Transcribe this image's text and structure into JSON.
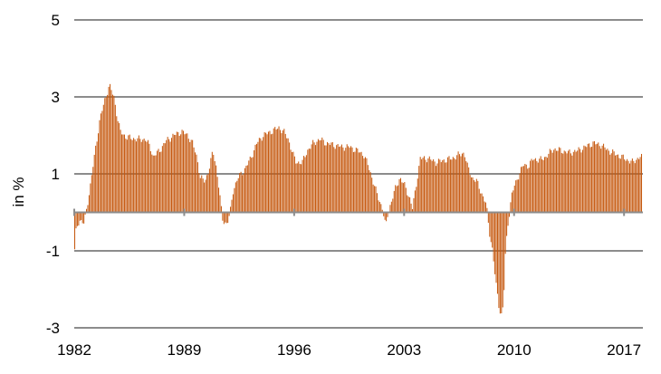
{
  "chart_data": {
    "type": "bar",
    "ylabel": "in %",
    "ylim": [
      -3,
      5
    ],
    "yticks": [
      5,
      3,
      1,
      -1,
      -3
    ],
    "xlim": [
      1982.0,
      2018.2
    ],
    "xtick_labels": [
      "1982",
      "1989",
      "1996",
      "2003",
      "2010",
      "2017"
    ],
    "xtick_values": [
      1982,
      1989,
      1996,
      2003,
      2010,
      2017
    ],
    "grid": "horizontal",
    "bar_color": "#c65a11",
    "series": [
      {
        "frequency": "monthly",
        "start": "1982-01",
        "anchors": [
          [
            1982.0,
            -1.0
          ],
          [
            1982.1,
            -0.4
          ],
          [
            1982.3,
            -0.2
          ],
          [
            1982.6,
            -0.3
          ],
          [
            1982.8,
            0.2
          ],
          [
            1983.0,
            0.7
          ],
          [
            1983.3,
            1.6
          ],
          [
            1983.6,
            2.4
          ],
          [
            1983.9,
            2.9
          ],
          [
            1984.2,
            3.3
          ],
          [
            1984.5,
            3.0
          ],
          [
            1984.7,
            2.5
          ],
          [
            1984.9,
            2.1
          ],
          [
            1985.3,
            1.95
          ],
          [
            1986.0,
            1.9
          ],
          [
            1986.5,
            1.9
          ],
          [
            1986.8,
            1.7
          ],
          [
            1987.0,
            1.45
          ],
          [
            1987.4,
            1.6
          ],
          [
            1987.8,
            1.85
          ],
          [
            1988.3,
            2.0
          ],
          [
            1988.8,
            2.1
          ],
          [
            1989.2,
            2.0
          ],
          [
            1989.5,
            1.8
          ],
          [
            1989.8,
            1.4
          ],
          [
            1990.0,
            0.9
          ],
          [
            1990.3,
            0.8
          ],
          [
            1990.6,
            1.2
          ],
          [
            1990.8,
            1.6
          ],
          [
            1991.0,
            1.2
          ],
          [
            1991.2,
            0.6
          ],
          [
            1991.4,
            -0.2
          ],
          [
            1991.7,
            -0.3
          ],
          [
            1991.9,
            0.0
          ],
          [
            1992.1,
            0.6
          ],
          [
            1992.4,
            0.9
          ],
          [
            1992.8,
            1.1
          ],
          [
            1993.2,
            1.4
          ],
          [
            1993.6,
            1.8
          ],
          [
            1994.0,
            2.0
          ],
          [
            1994.5,
            2.1
          ],
          [
            1995.0,
            2.2
          ],
          [
            1995.3,
            2.1
          ],
          [
            1995.6,
            1.9
          ],
          [
            1995.9,
            1.5
          ],
          [
            1996.1,
            1.3
          ],
          [
            1996.5,
            1.3
          ],
          [
            1996.8,
            1.6
          ],
          [
            1997.2,
            1.8
          ],
          [
            1997.6,
            1.9
          ],
          [
            1998.0,
            1.8
          ],
          [
            1998.5,
            1.75
          ],
          [
            1999.0,
            1.7
          ],
          [
            1999.5,
            1.7
          ],
          [
            2000.0,
            1.6
          ],
          [
            2000.4,
            1.5
          ],
          [
            2000.7,
            1.2
          ],
          [
            2001.0,
            0.8
          ],
          [
            2001.3,
            0.4
          ],
          [
            2001.6,
            0.1
          ],
          [
            2001.8,
            -0.4
          ],
          [
            2001.9,
            -0.1
          ],
          [
            2002.1,
            0.2
          ],
          [
            2002.4,
            0.6
          ],
          [
            2002.7,
            0.9
          ],
          [
            2003.0,
            0.7
          ],
          [
            2003.3,
            0.4
          ],
          [
            2003.5,
            0.1
          ],
          [
            2003.7,
            0.6
          ],
          [
            2004.0,
            1.4
          ],
          [
            2004.5,
            1.4
          ],
          [
            2005.0,
            1.3
          ],
          [
            2005.5,
            1.35
          ],
          [
            2006.0,
            1.4
          ],
          [
            2006.5,
            1.5
          ],
          [
            2006.8,
            1.55
          ],
          [
            2007.0,
            1.2
          ],
          [
            2007.3,
            0.9
          ],
          [
            2007.6,
            0.8
          ],
          [
            2007.9,
            0.5
          ],
          [
            2008.2,
            0.2
          ],
          [
            2008.4,
            -0.5
          ],
          [
            2008.6,
            -1.0
          ],
          [
            2008.8,
            -1.8
          ],
          [
            2009.0,
            -2.4
          ],
          [
            2009.15,
            -2.7
          ],
          [
            2009.3,
            -2.4
          ],
          [
            2009.4,
            -1.2
          ],
          [
            2009.55,
            -0.4
          ],
          [
            2009.8,
            0.4
          ],
          [
            2010.0,
            0.7
          ],
          [
            2010.3,
            1.0
          ],
          [
            2010.6,
            1.25
          ],
          [
            2010.9,
            1.2
          ],
          [
            2011.2,
            1.4
          ],
          [
            2011.6,
            1.35
          ],
          [
            2012.0,
            1.45
          ],
          [
            2012.5,
            1.65
          ],
          [
            2013.0,
            1.6
          ],
          [
            2013.5,
            1.55
          ],
          [
            2014.0,
            1.6
          ],
          [
            2014.5,
            1.7
          ],
          [
            2015.0,
            1.8
          ],
          [
            2015.5,
            1.75
          ],
          [
            2016.0,
            1.6
          ],
          [
            2016.5,
            1.5
          ],
          [
            2017.0,
            1.4
          ],
          [
            2017.5,
            1.3
          ],
          [
            2018.0,
            1.45
          ],
          [
            2018.2,
            1.4
          ]
        ]
      }
    ]
  }
}
